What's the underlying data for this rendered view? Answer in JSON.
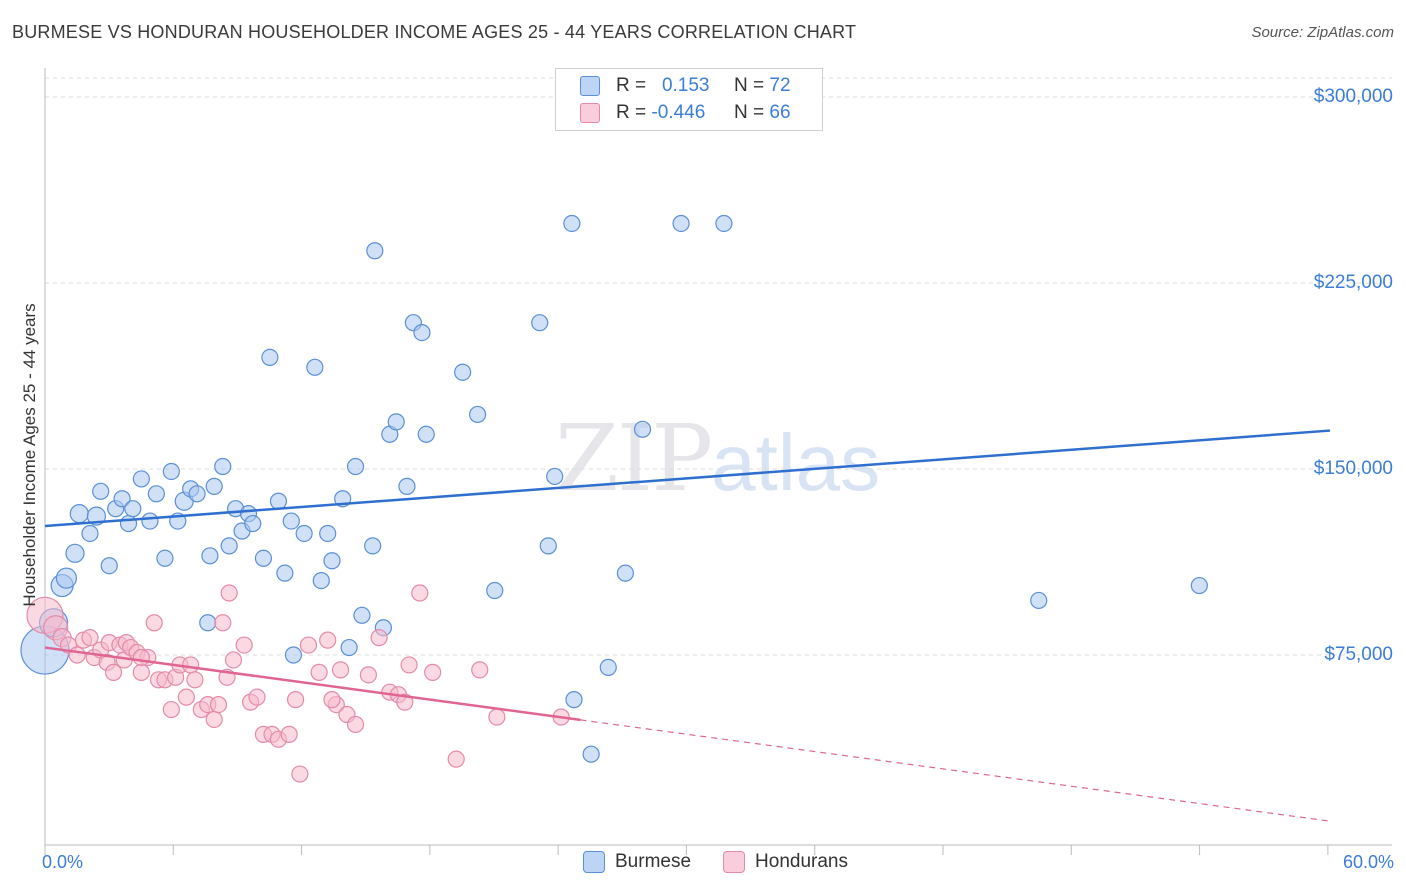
{
  "title": "BURMESE VS HONDURAN HOUSEHOLDER INCOME AGES 25 - 44 YEARS CORRELATION CHART",
  "source": "Source: ZipAtlas.com",
  "watermark": {
    "zip": "ZIP",
    "atlas": "atlas"
  },
  "legend": {
    "rows": [
      {
        "r_label": "R =",
        "r_value": "0.153",
        "n_label": "N =",
        "n_value": "72"
      },
      {
        "r_label": "R =",
        "r_value": "-0.446",
        "n_label": "N =",
        "n_value": "66"
      }
    ]
  },
  "bottom_legend": [
    "Burmese",
    "Hondurans"
  ],
  "colors": {
    "burmese_fill": "#a9c8f0",
    "burmese_stroke": "#5b8fd6",
    "burmese_line": "#2f6fcf",
    "honduran_fill": "#f6b9cc",
    "honduran_stroke": "#e58aa8",
    "honduran_line": "#e06592",
    "tick_text": "#3b7dd8",
    "grid": "#dcdcdc"
  },
  "chart_data": {
    "type": "scatter",
    "title": "BURMESE VS HONDURAN HOUSEHOLDER INCOME AGES 25 - 44 YEARS CORRELATION CHART",
    "xlabel": "",
    "ylabel": "Householder Income Ages 25 - 44 years",
    "xlim": [
      0,
      60
    ],
    "ylim": [
      0,
      310000
    ],
    "x_tick_labels": [
      "0.0%",
      "60.0%"
    ],
    "y_ticks": [
      {
        "value": 75000,
        "label": "$75,000"
      },
      {
        "value": 150000,
        "label": "$150,000"
      },
      {
        "value": 225000,
        "label": "$225,000"
      },
      {
        "value": 300000,
        "label": "$300,000"
      }
    ],
    "grid": true,
    "legend_position": "top-center",
    "series": [
      {
        "name": "Burmese",
        "r": 0.153,
        "n": 72,
        "trend": {
          "x": [
            0,
            60
          ],
          "y": [
            127000,
            165500
          ],
          "dashed_from": null
        },
        "points": [
          [
            0.0,
            77000,
            24
          ],
          [
            0.4,
            88000,
            14
          ],
          [
            0.8,
            103000,
            11
          ],
          [
            1.0,
            106000,
            10
          ],
          [
            1.4,
            116000,
            9
          ],
          [
            1.6,
            132000,
            9
          ],
          [
            2.1,
            124000,
            8
          ],
          [
            2.4,
            131000,
            9
          ],
          [
            2.6,
            141000,
            8
          ],
          [
            3.0,
            111000,
            8
          ],
          [
            3.3,
            134000,
            8
          ],
          [
            3.6,
            138000,
            8
          ],
          [
            3.9,
            128000,
            8
          ],
          [
            4.1,
            134000,
            8
          ],
          [
            4.5,
            146000,
            8
          ],
          [
            4.9,
            129000,
            8
          ],
          [
            5.2,
            140000,
            8
          ],
          [
            5.6,
            114000,
            8
          ],
          [
            5.9,
            149000,
            8
          ],
          [
            6.2,
            129000,
            8
          ],
          [
            6.5,
            137000,
            9
          ],
          [
            6.8,
            142000,
            8
          ],
          [
            7.1,
            140000,
            8
          ],
          [
            7.6,
            88000,
            8
          ],
          [
            7.7,
            115000,
            8
          ],
          [
            7.9,
            143000,
            8
          ],
          [
            8.3,
            151000,
            8
          ],
          [
            8.6,
            119000,
            8
          ],
          [
            8.9,
            134000,
            8
          ],
          [
            9.2,
            125000,
            8
          ],
          [
            9.5,
            132000,
            8
          ],
          [
            9.7,
            128000,
            8
          ],
          [
            10.2,
            114000,
            8
          ],
          [
            10.5,
            195000,
            8
          ],
          [
            10.9,
            137000,
            8
          ],
          [
            11.2,
            108000,
            8
          ],
          [
            11.5,
            129000,
            8
          ],
          [
            11.6,
            75000,
            8
          ],
          [
            12.1,
            124000,
            8
          ],
          [
            12.6,
            191000,
            8
          ],
          [
            12.9,
            105000,
            8
          ],
          [
            13.2,
            124000,
            8
          ],
          [
            13.4,
            113000,
            8
          ],
          [
            13.9,
            138000,
            8
          ],
          [
            14.2,
            78000,
            8
          ],
          [
            14.5,
            151000,
            8
          ],
          [
            14.8,
            91000,
            8
          ],
          [
            15.3,
            119000,
            8
          ],
          [
            15.4,
            238000,
            8
          ],
          [
            15.8,
            86000,
            8
          ],
          [
            16.1,
            164000,
            8
          ],
          [
            16.4,
            169000,
            8
          ],
          [
            16.9,
            143000,
            8
          ],
          [
            17.2,
            209000,
            8
          ],
          [
            17.6,
            205000,
            8
          ],
          [
            17.8,
            164000,
            8
          ],
          [
            19.5,
            189000,
            8
          ],
          [
            20.2,
            172000,
            8
          ],
          [
            21.0,
            101000,
            8
          ],
          [
            23.1,
            209000,
            8
          ],
          [
            23.5,
            119000,
            8
          ],
          [
            23.8,
            147000,
            8
          ],
          [
            24.6,
            249000,
            8
          ],
          [
            24.7,
            57000,
            8
          ],
          [
            25.5,
            35000,
            8
          ],
          [
            26.3,
            70000,
            8
          ],
          [
            27.1,
            108000,
            8
          ],
          [
            27.9,
            166000,
            8
          ],
          [
            29.7,
            249000,
            8
          ],
          [
            31.7,
            249000,
            8
          ],
          [
            46.4,
            97000,
            8
          ],
          [
            53.9,
            103000,
            8
          ]
        ]
      },
      {
        "name": "Hondurans",
        "r": -0.446,
        "n": 66,
        "trend": {
          "x": [
            0,
            60
          ],
          "y": [
            78000,
            8000
          ],
          "dashed_from": 25
        },
        "points": [
          [
            0.0,
            91000,
            18
          ],
          [
            0.5,
            86000,
            12
          ],
          [
            0.8,
            82000,
            9
          ],
          [
            1.1,
            79000,
            8
          ],
          [
            1.5,
            75000,
            8
          ],
          [
            1.8,
            81000,
            8
          ],
          [
            2.1,
            82000,
            8
          ],
          [
            2.3,
            74000,
            8
          ],
          [
            2.6,
            77000,
            8
          ],
          [
            2.9,
            72000,
            8
          ],
          [
            3.0,
            80000,
            8
          ],
          [
            3.2,
            68000,
            8
          ],
          [
            3.5,
            79000,
            8
          ],
          [
            3.7,
            73000,
            8
          ],
          [
            3.8,
            80000,
            8
          ],
          [
            4.0,
            78000,
            8
          ],
          [
            4.3,
            76000,
            8
          ],
          [
            4.5,
            68000,
            8
          ],
          [
            4.8,
            74000,
            8
          ],
          [
            5.1,
            88000,
            8
          ],
          [
            5.3,
            65000,
            8
          ],
          [
            5.6,
            65000,
            8
          ],
          [
            5.9,
            53000,
            8
          ],
          [
            6.1,
            66000,
            8
          ],
          [
            6.3,
            71000,
            8
          ],
          [
            6.6,
            58000,
            8
          ],
          [
            6.8,
            71000,
            8
          ],
          [
            7.0,
            65000,
            8
          ],
          [
            7.3,
            53000,
            8
          ],
          [
            7.6,
            55000,
            8
          ],
          [
            7.9,
            49000,
            8
          ],
          [
            8.1,
            55000,
            8
          ],
          [
            8.5,
            66000,
            8
          ],
          [
            8.8,
            73000,
            8
          ],
          [
            9.3,
            79000,
            8
          ],
          [
            9.6,
            56000,
            8
          ],
          [
            9.9,
            58000,
            8
          ],
          [
            10.2,
            43000,
            8
          ],
          [
            10.6,
            43000,
            8
          ],
          [
            10.9,
            41000,
            8
          ],
          [
            11.4,
            43000,
            8
          ],
          [
            11.7,
            57000,
            8
          ],
          [
            11.9,
            27000,
            8
          ],
          [
            12.3,
            79000,
            8
          ],
          [
            12.8,
            68000,
            8
          ],
          [
            13.2,
            81000,
            8
          ],
          [
            13.6,
            55000,
            8
          ],
          [
            13.8,
            69000,
            8
          ],
          [
            14.1,
            51000,
            8
          ],
          [
            14.5,
            47000,
            8
          ],
          [
            15.1,
            67000,
            8
          ],
          [
            15.6,
            82000,
            8
          ],
          [
            16.1,
            60000,
            8
          ],
          [
            16.5,
            59000,
            8
          ],
          [
            16.8,
            56000,
            8
          ],
          [
            17.0,
            71000,
            8
          ],
          [
            17.5,
            100000,
            8
          ],
          [
            18.1,
            68000,
            8
          ],
          [
            19.2,
            33000,
            8
          ],
          [
            20.3,
            69000,
            8
          ],
          [
            21.1,
            50000,
            8
          ],
          [
            24.1,
            50000,
            8
          ],
          [
            4.5,
            74000,
            8
          ],
          [
            8.6,
            100000,
            8
          ],
          [
            8.3,
            88000,
            8
          ],
          [
            13.4,
            57000,
            8
          ]
        ]
      }
    ]
  }
}
